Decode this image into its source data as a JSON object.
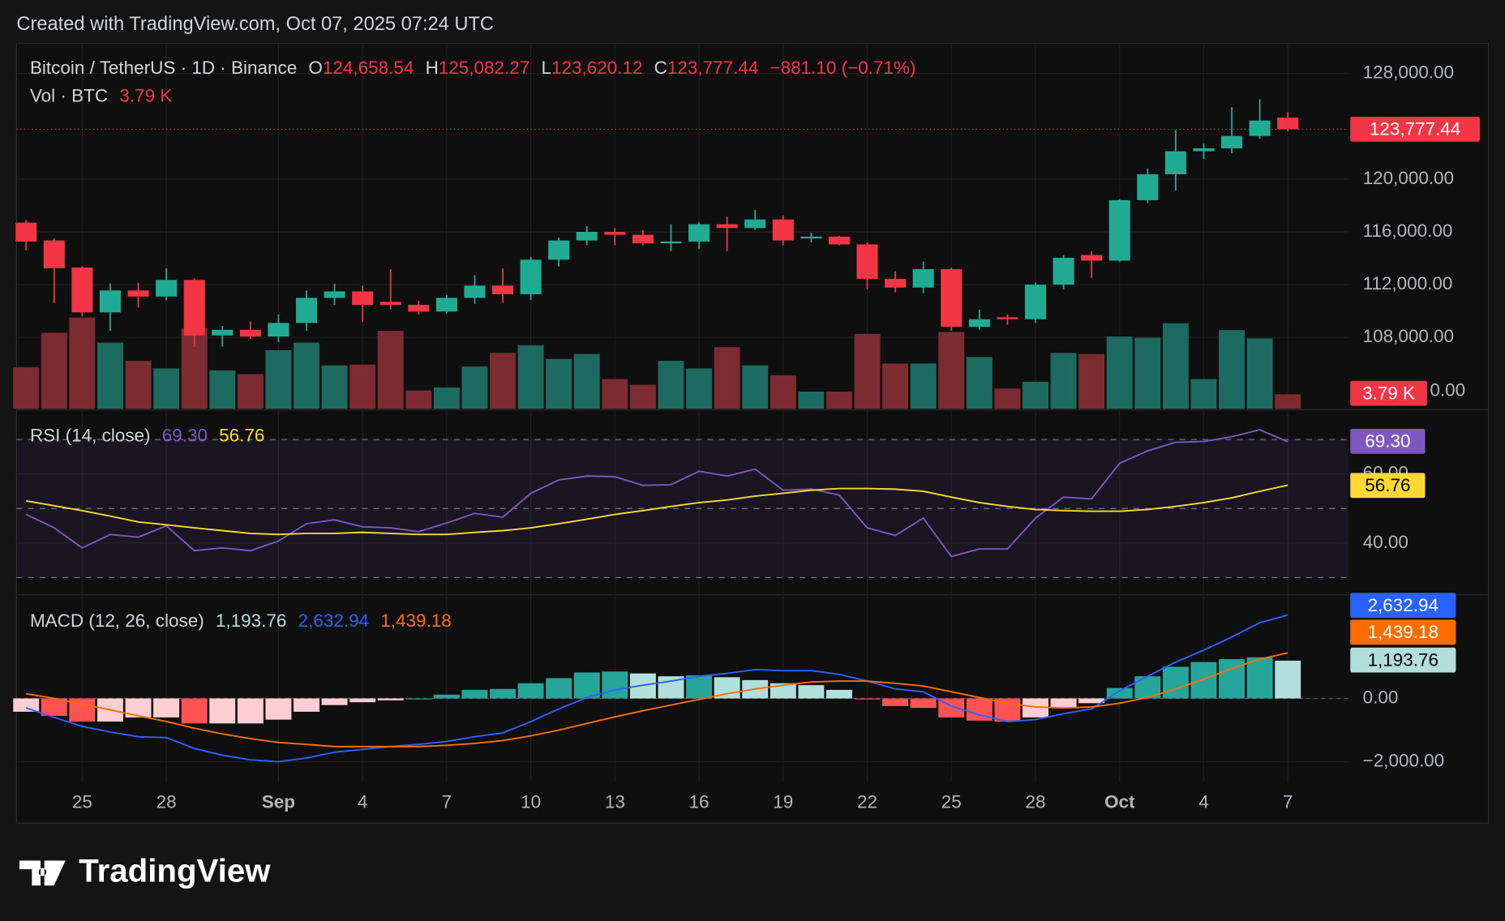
{
  "header": "Created with TradingView.com, Oct 07, 2025 07:24 UTC",
  "logo": "TradingView",
  "chart_data": [
    {
      "type": "candlestick",
      "title": "Bitcoin / TetherUS · 1D · Binance",
      "ohlc_legend": [
        {
          "key": "O",
          "label": "124,658.54"
        },
        {
          "key": "H",
          "label": "125,082.27"
        },
        {
          "key": "L",
          "label": "123,620.12"
        },
        {
          "key": "C",
          "label": "123,777.44"
        }
      ],
      "change": "−881.10 (−0.71%)",
      "categories": [
        null,
        null,
        "25",
        null,
        null,
        "28",
        null,
        null,
        null,
        "Sep",
        null,
        null,
        "4",
        null,
        null,
        "7",
        null,
        null,
        "10",
        null,
        null,
        "13",
        null,
        null,
        "16",
        null,
        null,
        "19",
        null,
        null,
        "22",
        null,
        null,
        "25",
        null,
        null,
        "28",
        null,
        null,
        "Oct",
        null,
        null,
        "4",
        null,
        null,
        "7"
      ],
      "open": [
        116700,
        115350,
        113300,
        109900,
        111560,
        111100,
        112360,
        108150,
        108580,
        108070,
        109100,
        111000,
        111490,
        110700,
        110470,
        109960,
        111000,
        111930,
        111270,
        113890,
        115350,
        116000,
        115780,
        115130,
        115270,
        116580,
        116290,
        116940,
        115500,
        115640,
        115050,
        112440,
        111780,
        113170,
        108800,
        109530,
        109380,
        112000,
        114250,
        113820,
        118400,
        120360,
        122110,
        122330,
        123270,
        124658.54
      ],
      "high": [
        116900,
        115500,
        113400,
        112100,
        112150,
        113240,
        112500,
        108870,
        109200,
        109750,
        111560,
        112070,
        111930,
        113170,
        110760,
        111200,
        112730,
        113240,
        114110,
        115560,
        116440,
        116290,
        116150,
        116580,
        116730,
        117160,
        117670,
        117240,
        115930,
        115710,
        115200,
        113020,
        113750,
        113310,
        110110,
        109750,
        112150,
        114250,
        114550,
        118470,
        120800,
        123710,
        122690,
        125450,
        126040,
        125082.27
      ],
      "low": [
        114600,
        110600,
        109600,
        108500,
        110250,
        110830,
        107270,
        107300,
        107900,
        107640,
        108500,
        110470,
        109160,
        110100,
        109740,
        109820,
        110550,
        110620,
        110840,
        113380,
        114980,
        114980,
        114980,
        114550,
        114690,
        114550,
        116150,
        114980,
        115200,
        114980,
        111640,
        111420,
        111350,
        108510,
        108580,
        108950,
        109090,
        111640,
        112510,
        113750,
        118180,
        119130,
        121530,
        121960,
        123050,
        123620.12
      ],
      "close": [
        115270,
        113240,
        109900,
        111560,
        111100,
        112360,
        108150,
        108580,
        108070,
        109100,
        111000,
        111490,
        110470,
        110470,
        109960,
        111000,
        111930,
        111270,
        113890,
        115350,
        116000,
        115780,
        115130,
        115270,
        116580,
        116290,
        116940,
        115350,
        115640,
        115050,
        112440,
        111780,
        113170,
        108800,
        109380,
        109380,
        112000,
        114040,
        113820,
        118400,
        120360,
        122110,
        122330,
        123270,
        124440,
        123777.44
      ],
      "up_color": "#22ab94",
      "down_color": "#f23645",
      "ylim": [
        102600,
        130300
      ],
      "yticks": [
        {
          "value": 108000,
          "label": "108,000.00"
        },
        {
          "value": 112000,
          "label": "112,000.00"
        },
        {
          "value": 116000,
          "label": "116,000.00"
        },
        {
          "value": 120000,
          "label": "120,000.00"
        },
        {
          "value": 128000,
          "label": "128,000.00"
        }
      ],
      "grid": true,
      "volume": {
        "name": "Vol · BTC",
        "values": [
          10900,
          20000,
          24000,
          17400,
          12600,
          10600,
          21200,
          10100,
          9100,
          15400,
          17400,
          11400,
          11600,
          20500,
          4800,
          5600,
          11100,
          14700,
          16700,
          13100,
          14400,
          7800,
          6300,
          12600,
          10600,
          16200,
          11400,
          8800,
          4500,
          4500,
          19700,
          11900,
          11900,
          20200,
          13600,
          5300,
          7100,
          14700,
          14400,
          19000,
          18700,
          22500,
          7800,
          20700,
          18500,
          3790
        ],
        "value_label": "3.79 K",
        "up_color": "#1d6b60",
        "down_color": "#7c2b31",
        "yticks": [
          {
            "value": 0,
            "label": "0.00"
          }
        ]
      }
    },
    {
      "type": "line",
      "title": "RSI (14, close)",
      "ylim": [
        26.4,
        77.8
      ],
      "yticks": [
        {
          "value": 40,
          "label": "40.00"
        },
        {
          "value": 60,
          "label": "60.00"
        }
      ],
      "levels": [
        70,
        50,
        30
      ],
      "band": [
        30,
        70
      ],
      "band_color": "#7e57c2",
      "series": [
        {
          "color": "#7e57c2",
          "value_label": "69.30",
          "values": [
            48.3,
            44.4,
            38.6,
            42.5,
            41.7,
            45.0,
            37.8,
            38.6,
            37.8,
            40.6,
            45.6,
            46.7,
            44.7,
            44.4,
            43.3,
            45.8,
            48.6,
            47.5,
            54.4,
            58.3,
            59.4,
            59.2,
            56.7,
            56.9,
            60.8,
            59.4,
            61.4,
            55.3,
            55.6,
            53.9,
            44.4,
            42.2,
            47.2,
            36.1,
            38.3,
            38.3,
            47.2,
            53.3,
            52.8,
            63.1,
            66.7,
            69.2,
            69.4,
            70.8,
            72.8,
            69.3
          ]
        },
        {
          "color": "#fdd835",
          "value_label": "56.76",
          "values": [
            52.2,
            50.8,
            49.4,
            47.8,
            46.1,
            45.3,
            44.4,
            43.6,
            42.8,
            42.5,
            42.8,
            42.8,
            43.1,
            42.8,
            42.5,
            42.5,
            43.1,
            43.6,
            44.4,
            45.6,
            46.9,
            48.3,
            49.4,
            50.6,
            51.7,
            52.5,
            53.6,
            54.4,
            55.3,
            55.8,
            55.8,
            55.6,
            55.0,
            53.3,
            51.7,
            50.6,
            49.7,
            49.4,
            49.2,
            49.2,
            49.7,
            50.6,
            51.7,
            53.1,
            55.0,
            56.76
          ]
        }
      ]
    },
    {
      "type": "macd",
      "title": "MACD (12, 26, close)",
      "ylim": [
        -2636,
        3273
      ],
      "yticks": [
        {
          "value": 0,
          "label": "0.00"
        },
        {
          "value": -2000,
          "label": "−2,000.00"
        }
      ],
      "histogram": {
        "value_label": "1,193.76",
        "colors": [
          "#26a69a",
          "#b2dfdb",
          "#ff5252",
          "#ffcdd2"
        ],
        "values": [
          -420,
          -550,
          -730,
          -730,
          -600,
          -600,
          -790,
          -790,
          -790,
          -670,
          -420,
          -210,
          -120,
          -60,
          0,
          120,
          270,
          300,
          480,
          640,
          820,
          850,
          790,
          700,
          730,
          670,
          580,
          480,
          420,
          270,
          -20,
          -240,
          -300,
          -600,
          -700,
          -730,
          -600,
          -300,
          -150,
          330,
          700,
          1000,
          1150,
          1240,
          1300,
          1193.76
        ]
      },
      "series": [
        {
          "color": "#2962ff",
          "value_label": "2,632.94",
          "values": [
            -300,
            -600,
            -880,
            -1060,
            -1210,
            -1240,
            -1580,
            -1790,
            -1940,
            -2000,
            -1880,
            -1700,
            -1610,
            -1520,
            -1450,
            -1360,
            -1210,
            -1090,
            -730,
            -330,
            30,
            270,
            420,
            550,
            700,
            790,
            910,
            880,
            880,
            760,
            550,
            300,
            210,
            -240,
            -520,
            -730,
            -670,
            -480,
            -330,
            240,
            700,
            1150,
            1520,
            1940,
            2390,
            2632.94
          ]
        },
        {
          "color": "#ff6d00",
          "value_label": "1,439.18",
          "values": [
            150,
            0,
            -180,
            -360,
            -550,
            -730,
            -940,
            -1120,
            -1270,
            -1390,
            -1450,
            -1520,
            -1520,
            -1520,
            -1520,
            -1480,
            -1420,
            -1330,
            -1180,
            -1000,
            -790,
            -580,
            -390,
            -210,
            -30,
            150,
            300,
            420,
            520,
            550,
            550,
            480,
            390,
            210,
            30,
            -150,
            -270,
            -300,
            -270,
            -150,
            30,
            300,
            610,
            940,
            1240,
            1439.18
          ]
        }
      ]
    }
  ]
}
